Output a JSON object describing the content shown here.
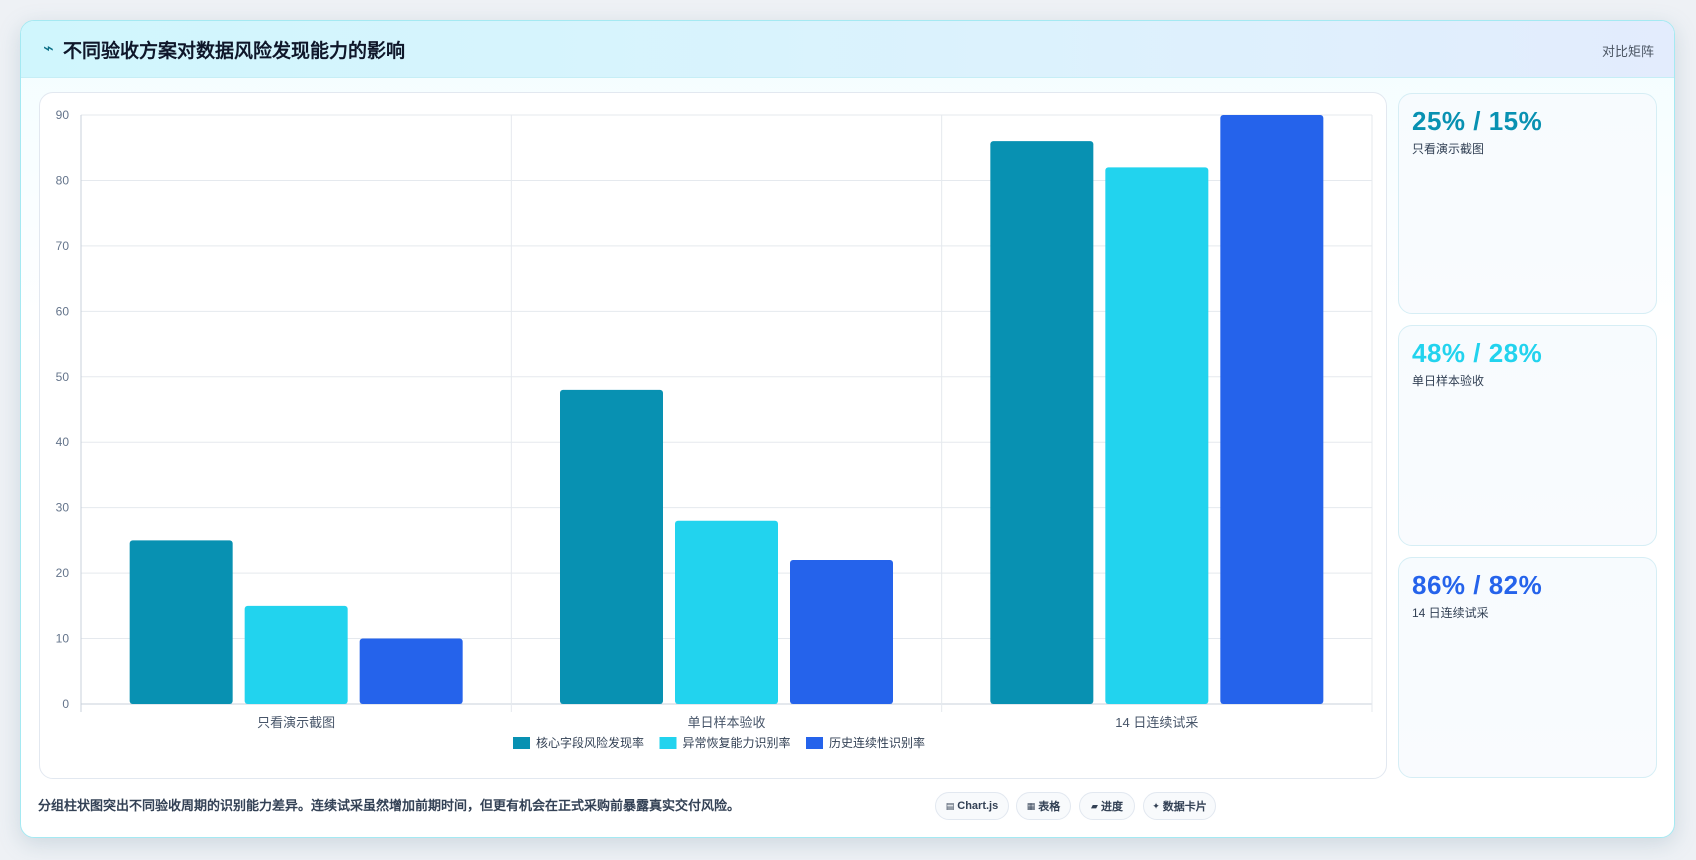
{
  "header": {
    "icon": "pulse-icon",
    "title": "不同验收方案对数据风险发现能力的影响",
    "tag": "对比矩阵"
  },
  "chart_data": {
    "type": "bar",
    "categories": [
      "只看演示截图",
      "单日样本验收",
      "14 日连续试采"
    ],
    "series": [
      {
        "name": "核心字段风险发现率",
        "values": [
          25,
          48,
          86
        ],
        "color": "#0891b2"
      },
      {
        "name": "异常恢复能力识别率",
        "values": [
          15,
          28,
          82
        ],
        "color": "#22d3ee"
      },
      {
        "name": "历史连续性识别率",
        "values": [
          10,
          22,
          90
        ],
        "color": "#2563eb"
      }
    ],
    "ylim": [
      0,
      90
    ],
    "yticks": [
      0,
      10,
      20,
      30,
      40,
      50,
      60,
      70,
      80,
      90
    ],
    "grid": true,
    "legend": "bottom"
  },
  "cards": [
    {
      "value": "25% / 15%",
      "label": "只看演示截图",
      "color": "#0891b2"
    },
    {
      "value": "48% / 28%",
      "label": "单日样本验收",
      "color": "#22d3ee"
    },
    {
      "value": "86% / 82%",
      "label": "14 日连续试采",
      "color": "#2563eb"
    }
  ],
  "footer": {
    "note": "分组柱状图突出不同验收周期的识别能力差异。连续试采虽然增加前期时间，但更有机会在正式采购前暴露真实交付风险。",
    "chips": [
      {
        "icon": "chart-icon",
        "label": "Chart.js"
      },
      {
        "icon": "table-icon",
        "label": "表格"
      },
      {
        "icon": "progress-icon",
        "label": "进度"
      },
      {
        "icon": "sparkle-icon",
        "label": "数据卡片"
      }
    ]
  }
}
